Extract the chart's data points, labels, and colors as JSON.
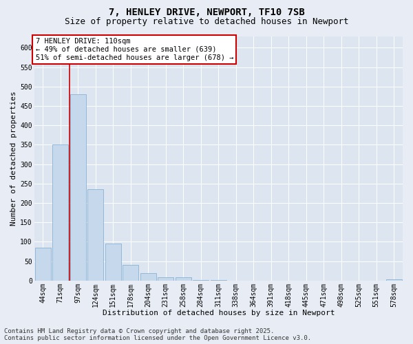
{
  "title": "7, HENLEY DRIVE, NEWPORT, TF10 7SB",
  "subtitle": "Size of property relative to detached houses in Newport",
  "xlabel": "Distribution of detached houses by size in Newport",
  "ylabel": "Number of detached properties",
  "categories": [
    "44sqm",
    "71sqm",
    "97sqm",
    "124sqm",
    "151sqm",
    "178sqm",
    "204sqm",
    "231sqm",
    "258sqm",
    "284sqm",
    "311sqm",
    "338sqm",
    "364sqm",
    "391sqm",
    "418sqm",
    "445sqm",
    "471sqm",
    "498sqm",
    "525sqm",
    "551sqm",
    "578sqm"
  ],
  "values": [
    85,
    350,
    480,
    235,
    95,
    40,
    20,
    8,
    8,
    2,
    2,
    0,
    0,
    0,
    0,
    0,
    0,
    0,
    0,
    0,
    3
  ],
  "bar_color": "#c5d8ec",
  "bar_edge_color": "#7aaad0",
  "vline_pos": 1.5,
  "vline_color": "#cc0000",
  "annotation_text": "7 HENLEY DRIVE: 110sqm\n← 49% of detached houses are smaller (639)\n51% of semi-detached houses are larger (678) →",
  "annotation_box_facecolor": "#ffffff",
  "annotation_box_edgecolor": "#cc0000",
  "ylim": [
    0,
    630
  ],
  "yticks": [
    0,
    50,
    100,
    150,
    200,
    250,
    300,
    350,
    400,
    450,
    500,
    550,
    600
  ],
  "fig_bg_color": "#e8edf5",
  "plot_bg_color": "#dce5f0",
  "footer_text": "Contains HM Land Registry data © Crown copyright and database right 2025.\nContains public sector information licensed under the Open Government Licence v3.0.",
  "title_fontsize": 10,
  "subtitle_fontsize": 9,
  "axis_label_fontsize": 8,
  "tick_fontsize": 7,
  "ann_fontsize": 7.5,
  "footer_fontsize": 6.5
}
